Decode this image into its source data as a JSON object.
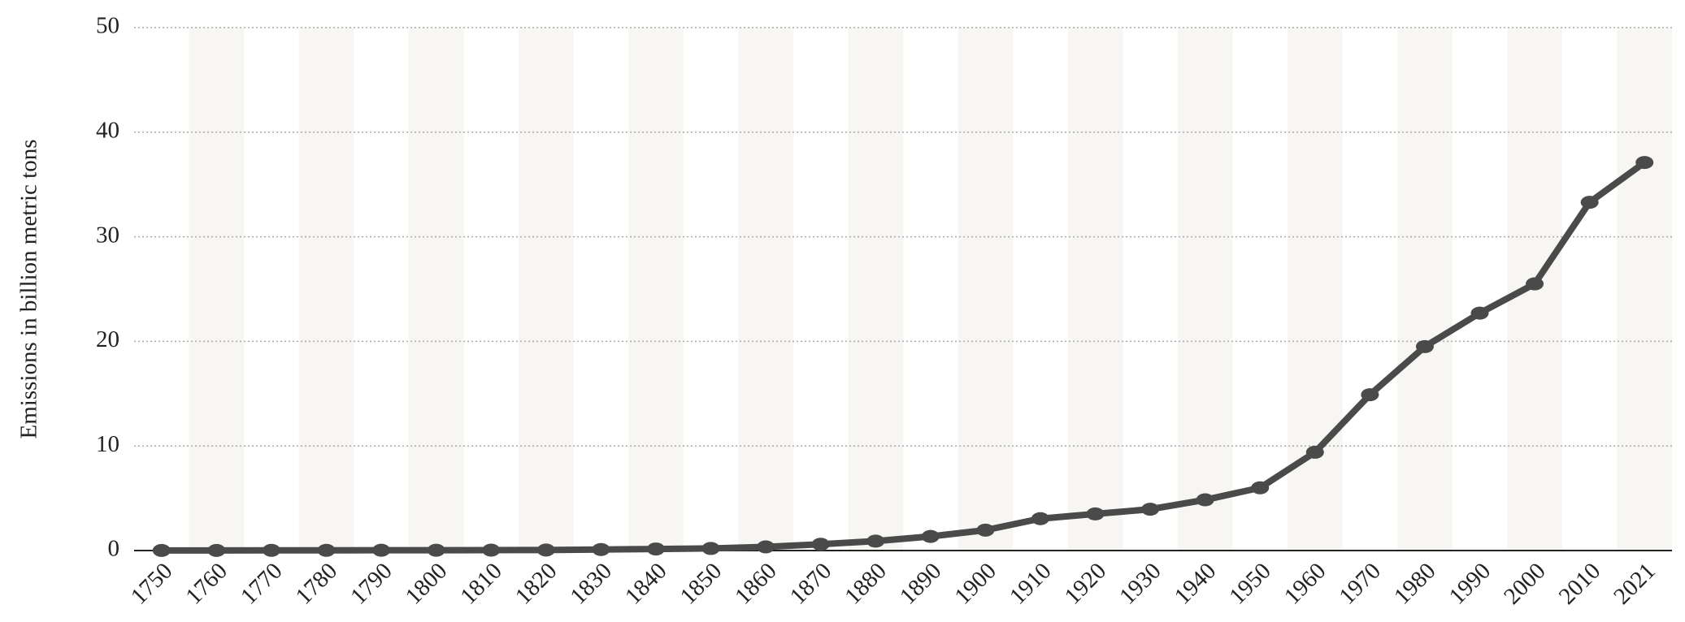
{
  "chart_data": {
    "type": "line",
    "y_label": "Emissions in billion metric tons",
    "categories": [
      "1750",
      "1760",
      "1770",
      "1780",
      "1790",
      "1800",
      "1810",
      "1820",
      "1830",
      "1840",
      "1850",
      "1860",
      "1870",
      "1880",
      "1890",
      "1900",
      "1910",
      "1920",
      "1930",
      "1940",
      "1950",
      "1960",
      "1970",
      "1980",
      "1990",
      "2000",
      "2010",
      "2021"
    ],
    "values": [
      0.01,
      0.01,
      0.02,
      0.02,
      0.03,
      0.03,
      0.04,
      0.05,
      0.1,
      0.15,
      0.2,
      0.35,
      0.6,
      0.9,
      1.35,
      1.95,
      3.05,
      3.5,
      3.95,
      4.85,
      6.0,
      9.4,
      14.9,
      19.5,
      22.7,
      25.5,
      33.3,
      37.1
    ],
    "color": "#4a4a4a",
    "ylim": [
      0,
      50
    ],
    "yticks": [
      0,
      10,
      20,
      30,
      40,
      50
    ],
    "grid": true
  }
}
